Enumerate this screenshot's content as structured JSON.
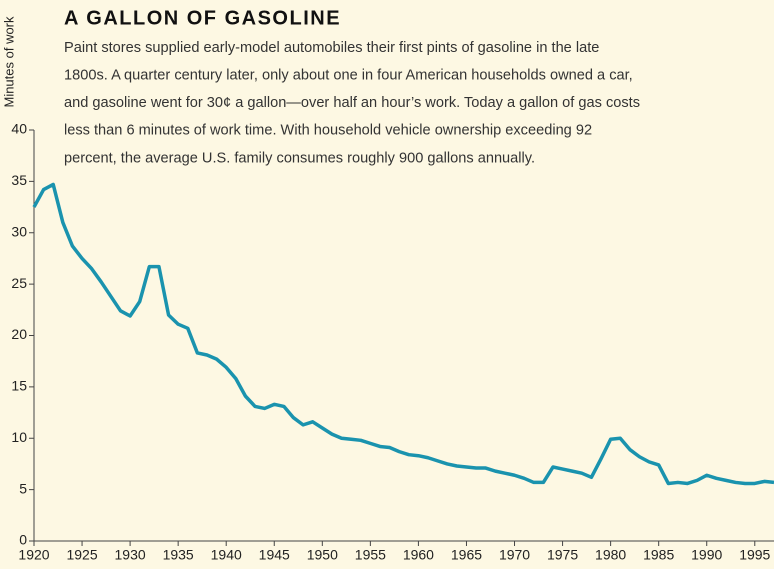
{
  "chart_data": {
    "type": "line",
    "title": "A GALLON OF GASOLINE",
    "text_lines": [
      "Paint stores supplied early-model automobiles their first pints of gasoline in the late",
      "1800s. A quarter century later, only about one in four American households owned a car,",
      "and gasoline went for 30¢ a gallon—over half an hour’s work. Today a gallon of gas costs",
      "less than 6 minutes of work time. With household vehicle ownership exceeding 92",
      "percent, the average U.S. family consumes roughly 900 gallons annually."
    ],
    "y_label": "Minutes of work",
    "x": [
      1920,
      1921,
      1922,
      1923,
      1924,
      1925,
      1926,
      1927,
      1928,
      1929,
      1930,
      1931,
      1932,
      1933,
      1934,
      1935,
      1936,
      1937,
      1938,
      1939,
      1940,
      1941,
      1942,
      1943,
      1944,
      1945,
      1946,
      1947,
      1948,
      1949,
      1950,
      1951,
      1952,
      1953,
      1954,
      1955,
      1956,
      1957,
      1958,
      1959,
      1960,
      1961,
      1962,
      1963,
      1964,
      1965,
      1966,
      1967,
      1968,
      1969,
      1970,
      1971,
      1972,
      1973,
      1974,
      1975,
      1976,
      1977,
      1978,
      1979,
      1980,
      1981,
      1982,
      1983,
      1984,
      1985,
      1986,
      1987,
      1988,
      1989,
      1990,
      1991,
      1992,
      1993,
      1994,
      1995,
      1996,
      1997
    ],
    "values": [
      32.5,
      34.2,
      34.7,
      31,
      28.7,
      27.5,
      26.5,
      25.2,
      23.8,
      22.4,
      21.9,
      23.3,
      26.7,
      26.7,
      22,
      21.1,
      20.7,
      18.3,
      18.1,
      17.7,
      16.9,
      15.8,
      14.1,
      13.1,
      12.9,
      13.3,
      13.1,
      12,
      11.3,
      11.6,
      11,
      10.4,
      10,
      9.9,
      9.8,
      9.5,
      9.2,
      9.1,
      8.7,
      8.4,
      8.3,
      8.1,
      7.8,
      7.5,
      7.3,
      7.2,
      7.1,
      7.1,
      6.8,
      6.6,
      6.4,
      6.1,
      5.7,
      5.7,
      7.2,
      7,
      6.8,
      6.6,
      6.2,
      8,
      9.9,
      10,
      8.9,
      8.2,
      7.7,
      7.4,
      5.6,
      5.7,
      5.6,
      5.9,
      6.4,
      6.1,
      5.9,
      5.7,
      5.6,
      5.6,
      5.8,
      5.7
    ],
    "color": "#1a93ae",
    "xlim": [
      1920,
      1997
    ],
    "ylim": [
      0,
      40
    ],
    "xticks": [
      1920,
      1925,
      1930,
      1935,
      1940,
      1945,
      1950,
      1955,
      1960,
      1965,
      1970,
      1975,
      1980,
      1985,
      1990,
      1995
    ],
    "yticks": [
      0,
      5,
      10,
      15,
      20,
      25,
      30,
      35,
      40
    ]
  }
}
